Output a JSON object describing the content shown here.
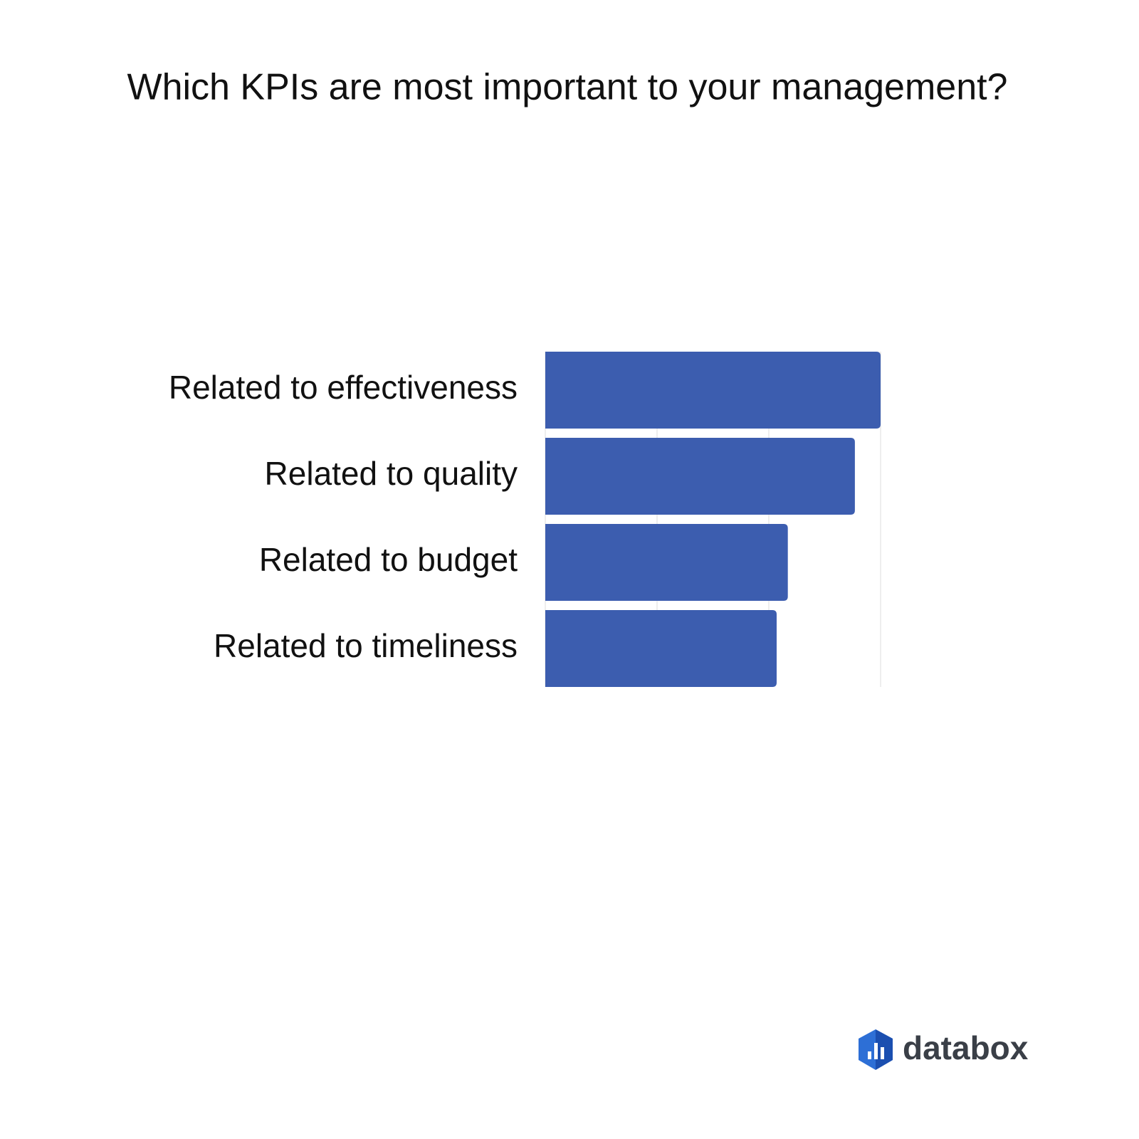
{
  "chart_data": {
    "type": "bar",
    "orientation": "horizontal",
    "title": "Which KPIs are most important to your management?",
    "categories": [
      "Related to effectiveness",
      "Related to quality",
      "Related to budget",
      "Related to timeliness"
    ],
    "values": [
      3.0,
      2.77,
      2.17,
      2.07
    ],
    "color": "#3c5daf",
    "xlim": [
      0,
      3
    ],
    "xticks": [
      0,
      1,
      2,
      3
    ],
    "grid": true
  },
  "logo": "databox"
}
